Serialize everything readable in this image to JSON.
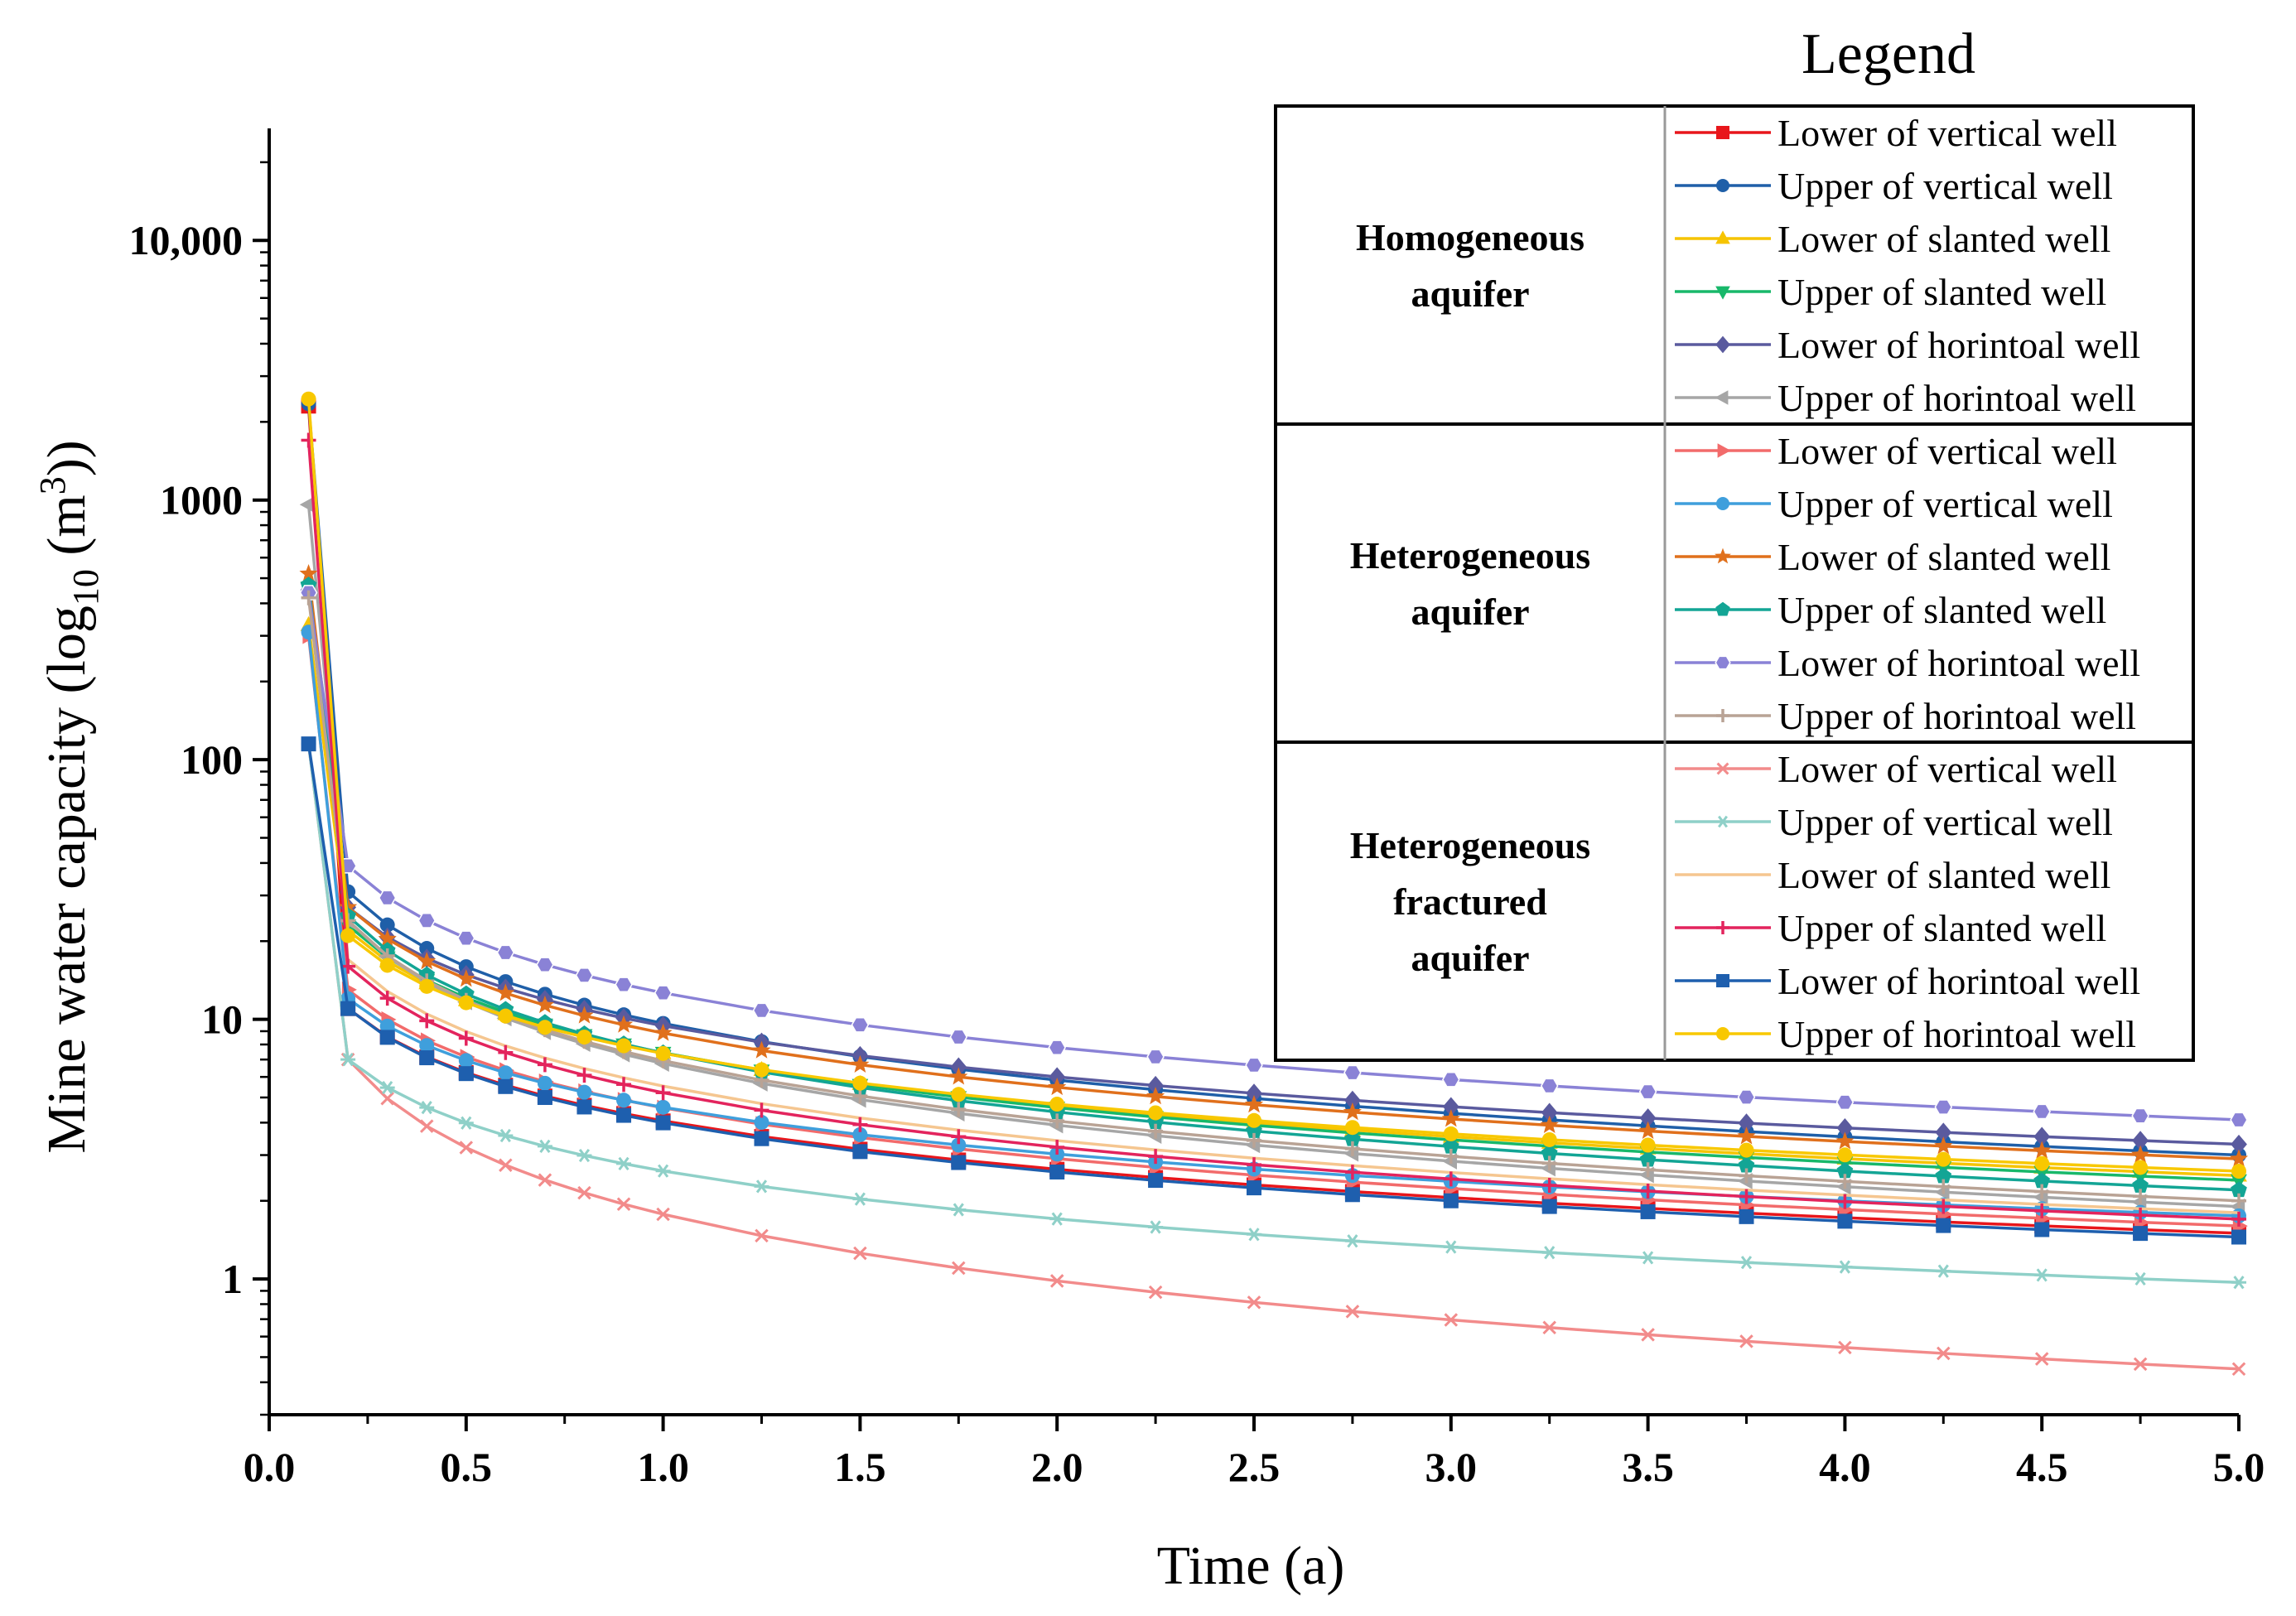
{
  "chart_data": {
    "type": "line",
    "title": "",
    "xlabel": "Time (a)",
    "ylabel_parts": {
      "main": "Mine water capacity (log",
      "sub": "10",
      "mid": " (m",
      "sup": "3",
      "end": "))"
    },
    "yscale": "log",
    "xlim": [
      0,
      5
    ],
    "ylim": [
      0.3,
      27000
    ],
    "x_ticks": [
      {
        "value": 0.0,
        "label": "0.0"
      },
      {
        "value": 0.5,
        "label": "0.5"
      },
      {
        "value": 1.0,
        "label": "1.0"
      },
      {
        "value": 1.5,
        "label": "1.5"
      },
      {
        "value": 2.0,
        "label": "2.0"
      },
      {
        "value": 2.5,
        "label": "2.5"
      },
      {
        "value": 3.0,
        "label": "3.0"
      },
      {
        "value": 3.5,
        "label": "3.5"
      },
      {
        "value": 4.0,
        "label": "4.0"
      },
      {
        "value": 4.5,
        "label": "4.5"
      },
      {
        "value": 5.0,
        "label": "5.0"
      }
    ],
    "y_ticks": [
      {
        "value": 1,
        "label": "1"
      },
      {
        "value": 10,
        "label": "10"
      },
      {
        "value": 100,
        "label": "100"
      },
      {
        "value": 1000,
        "label": "1000"
      },
      {
        "value": 10000,
        "label": "10,000"
      }
    ],
    "x": [
      0.1,
      0.2,
      0.3,
      0.4,
      0.5,
      0.6,
      0.7,
      0.8,
      0.9,
      1.0,
      1.25,
      1.5,
      1.75,
      2.0,
      2.25,
      2.5,
      2.75,
      3.0,
      3.25,
      3.5,
      3.75,
      4.0,
      4.25,
      4.5,
      4.75,
      5.0
    ],
    "legend_title": "Legend",
    "legend_location": "top-right",
    "groups": [
      {
        "label_lines": [
          "Homogeneous",
          "aquifer"
        ],
        "series": [
          {
            "name": "Lower of vertical well",
            "color": "#e8161b",
            "marker": "square",
            "v0": 2300,
            "v1": 11,
            "v_end": 1.5
          },
          {
            "name": "Upper of vertical well",
            "color": "#1f5fa8",
            "marker": "circle",
            "v0": 2350,
            "v1": 31,
            "v_end": 3.0
          },
          {
            "name": "Lower of slanted well",
            "color": "#f6c400",
            "marker": "triangle-up",
            "v0": 330,
            "v1": 22,
            "v_end": 2.5
          },
          {
            "name": "Upper of slanted well",
            "color": "#18b86a",
            "marker": "triangle-down",
            "v0": 460,
            "v1": 23,
            "v_end": 2.4
          },
          {
            "name": "Lower of horintoal well",
            "color": "#5a5a9e",
            "marker": "diamond",
            "v0": 450,
            "v1": 27,
            "v_end": 3.3
          },
          {
            "name": "Upper of horintoal well",
            "color": "#a6a6a6",
            "marker": "triangle-left",
            "v0": 960,
            "v1": 24,
            "v_end": 1.9
          }
        ]
      },
      {
        "label_lines": [
          "Heterogeneous",
          "aquifer"
        ],
        "series": [
          {
            "name": "Lower of vertical well",
            "color": "#f26b6b",
            "marker": "triangle-right",
            "v0": 300,
            "v1": 13,
            "v_end": 1.6
          },
          {
            "name": "Upper of vertical well",
            "color": "#3f9fdc",
            "marker": "circle",
            "v0": 310,
            "v1": 12,
            "v_end": 1.75
          },
          {
            "name": "Lower of slanted well",
            "color": "#e0701c",
            "marker": "star",
            "v0": 520,
            "v1": 27,
            "v_end": 2.9
          },
          {
            "name": "Upper of slanted well",
            "color": "#13a595",
            "marker": "pentagon",
            "v0": 470,
            "v1": 25,
            "v_end": 2.2
          },
          {
            "name": "Lower of horintoal well",
            "color": "#8a82d6",
            "marker": "hexagon",
            "v0": 440,
            "v1": 39,
            "v_end": 4.1
          },
          {
            "name": "Upper of horintoal well",
            "color": "#b9a395",
            "marker": "plus",
            "v0": 420,
            "v1": 24,
            "v_end": 2.0
          }
        ]
      },
      {
        "label_lines": [
          "Heterogeneous",
          "fractured",
          "aquifer"
        ],
        "series": [
          {
            "name": "Lower of vertical well",
            "color": "#f28b8b",
            "marker": "cross",
            "v0": 115,
            "v1": 7,
            "v_end": 0.45
          },
          {
            "name": "Upper of vertical well",
            "color": "#8fd0c8",
            "marker": "asterisk",
            "v0": 115,
            "v1": 7,
            "v_end": 0.97
          },
          {
            "name": "Lower of slanted well",
            "color": "#f5c690",
            "marker": "none",
            "v0": 1800,
            "v1": 17,
            "v_end": 1.8
          },
          {
            "name": "Upper of slanted well",
            "color": "#e3245d",
            "marker": "plus",
            "v0": 1700,
            "v1": 16,
            "v_end": 1.7
          },
          {
            "name": "Lower of horintoal well",
            "color": "#1e5fae",
            "marker": "square",
            "v0": 115,
            "v1": 11,
            "v_end": 1.45
          },
          {
            "name": "Upper of horintoal well",
            "color": "#f8c800",
            "marker": "circle",
            "v0": 2450,
            "v1": 21,
            "v_end": 2.6
          }
        ]
      }
    ]
  }
}
